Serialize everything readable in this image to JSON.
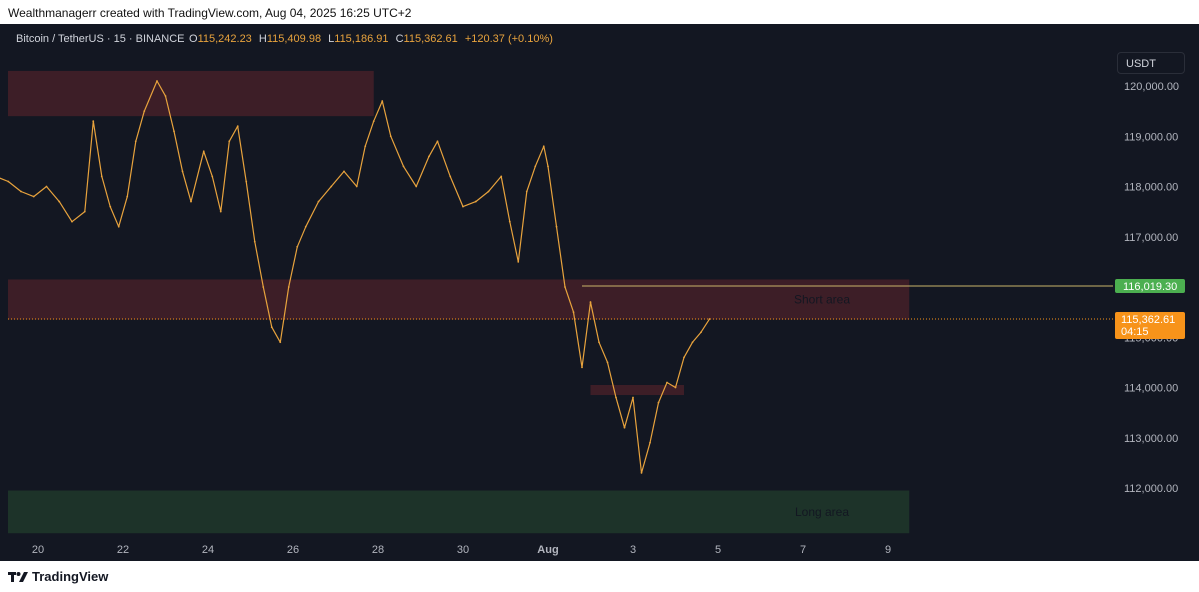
{
  "caption": "Wealthmanagerr created with TradingView.com, Aug 04, 2025 16:25 UTC+2",
  "header": {
    "symbol": "Bitcoin / TetherUS · 15 · BINANCE",
    "o_label": "O",
    "o_value": "115,242.23",
    "h_label": "H",
    "h_value": "115,409.98",
    "l_label": "L",
    "l_value": "115,186.91",
    "c_label": "C",
    "c_value": "115,362.61",
    "change": "+120.37 (+0.10%)"
  },
  "currency_button": "USDT",
  "brand": "TradingView",
  "colors": {
    "background": "#131722",
    "price_line": "#e8a33d",
    "supply_zone": "#3d1e27",
    "demand_zone": "#1d3329",
    "price_badge": "#f7931a",
    "level_badge": "#4caf50"
  },
  "chart_data": {
    "type": "line",
    "ylim": [
      111000,
      120700
    ],
    "y_ticks": [
      {
        "value": 112000,
        "label": "112,000.00"
      },
      {
        "value": 113000,
        "label": "113,000.00"
      },
      {
        "value": 114000,
        "label": "114,000.00"
      },
      {
        "value": 115000,
        "label": "115,000.00"
      },
      {
        "value": 116000,
        "label": "116,000.00"
      },
      {
        "value": 117000,
        "label": "117,000.00"
      },
      {
        "value": 118000,
        "label": "118,000.00"
      },
      {
        "value": 119000,
        "label": "119,000.00"
      },
      {
        "value": 120000,
        "label": "120,000.00"
      }
    ],
    "x_ticks": [
      {
        "day": 20,
        "label": "20"
      },
      {
        "day": 22,
        "label": "22"
      },
      {
        "day": 24,
        "label": "24"
      },
      {
        "day": 26,
        "label": "26"
      },
      {
        "day": 28,
        "label": "28"
      },
      {
        "day": 30,
        "label": "30"
      },
      {
        "day": 32,
        "label": "Aug"
      },
      {
        "day": 34,
        "label": "3"
      },
      {
        "day": 36,
        "label": "5"
      },
      {
        "day": 38,
        "label": "7"
      },
      {
        "day": 40,
        "label": "9"
      }
    ],
    "series": [
      {
        "x": [
          19.0,
          19.3,
          19.6,
          19.9,
          20.2,
          20.5,
          20.8,
          21.1,
          21.3,
          21.5,
          21.7,
          21.9,
          22.1,
          22.3,
          22.5,
          22.8,
          23.0,
          23.2,
          23.4,
          23.6,
          23.9,
          24.1,
          24.3,
          24.5,
          24.7,
          24.9,
          25.1,
          25.3,
          25.5,
          25.7,
          25.9,
          26.1,
          26.3,
          26.6,
          26.9,
          27.2,
          27.5,
          27.7,
          27.9,
          28.1,
          28.3,
          28.6,
          28.9,
          29.2,
          29.4,
          29.7,
          30.0,
          30.3,
          30.6,
          30.9,
          31.1,
          31.3,
          31.5,
          31.7,
          31.9,
          32.0,
          32.2,
          32.4,
          32.6,
          32.8,
          33.0,
          33.2,
          33.4,
          33.6,
          33.8,
          34.0,
          34.2,
          34.4,
          34.6,
          34.8,
          35.0,
          35.2,
          35.4,
          35.6,
          35.8
        ],
        "y": [
          118200,
          118100,
          117900,
          117800,
          118000,
          117700,
          117300,
          117500,
          119300,
          118200,
          117600,
          117200,
          117800,
          118900,
          119500,
          120100,
          119800,
          119100,
          118300,
          117700,
          118700,
          118200,
          117500,
          118900,
          119200,
          118100,
          116900,
          116000,
          115200,
          114900,
          116000,
          116800,
          117200,
          117700,
          118000,
          118300,
          118000,
          118800,
          119300,
          119700,
          119000,
          118400,
          118000,
          118600,
          118900,
          118200,
          117600,
          117700,
          117900,
          118200,
          117300,
          116500,
          117900,
          118400,
          118800,
          118400,
          117200,
          116000,
          115500,
          114400,
          115700,
          114900,
          114500,
          113800,
          113200,
          113800,
          112300,
          112900,
          113700,
          114100,
          114000,
          114600,
          114900,
          115100,
          115362
        ]
      }
    ],
    "zones": [
      {
        "type": "supply",
        "from": 119400,
        "to": 120300,
        "x_start": 19.0,
        "x_end": 27.9
      },
      {
        "type": "supply",
        "label": "Short area",
        "from": 115350,
        "to": 116150,
        "x_start": 19.0,
        "x_end": 40.5
      },
      {
        "type": "supply",
        "from": 113850,
        "to": 114050,
        "x_start": 33.0,
        "x_end": 35.2
      },
      {
        "type": "demand",
        "label": "Long area",
        "from": 111100,
        "to": 111950,
        "x_start": 19.0,
        "x_end": 40.5
      }
    ],
    "level_line": {
      "value": 116019.3,
      "label": "116,019.30",
      "x_start": 32.8
    },
    "current_price": {
      "value": 115362.61,
      "label": "115,362.61",
      "countdown": "04:15"
    }
  }
}
